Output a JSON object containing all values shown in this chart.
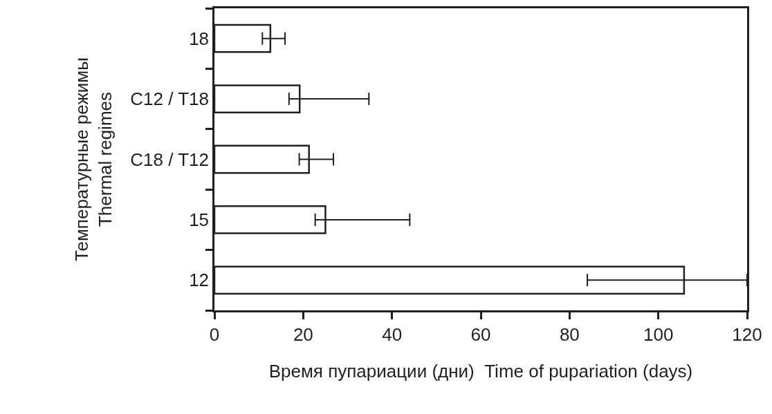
{
  "chart_data": {
    "type": "bar",
    "orientation": "horizontal",
    "categories": [
      "18",
      "C12 / T18",
      "C18 / T12",
      "15",
      "12"
    ],
    "values": [
      12.6,
      19.2,
      21.3,
      25.0,
      105.8
    ],
    "errors": [
      [
        10.8,
        15.9
      ],
      [
        16.8,
        34.8
      ],
      [
        19.1,
        26.8
      ],
      [
        22.7,
        44.0
      ],
      [
        84.0,
        120
      ]
    ],
    "color": "#ffffff",
    "xlabel": "Время пупариации (дни)  Time of pupariation (days)",
    "ylabel": "Температурные режимы\nThermal regimes",
    "xlim": [
      0,
      120
    ],
    "xticks": [
      0,
      20,
      40,
      60,
      80,
      100,
      120
    ],
    "grid": false
  }
}
